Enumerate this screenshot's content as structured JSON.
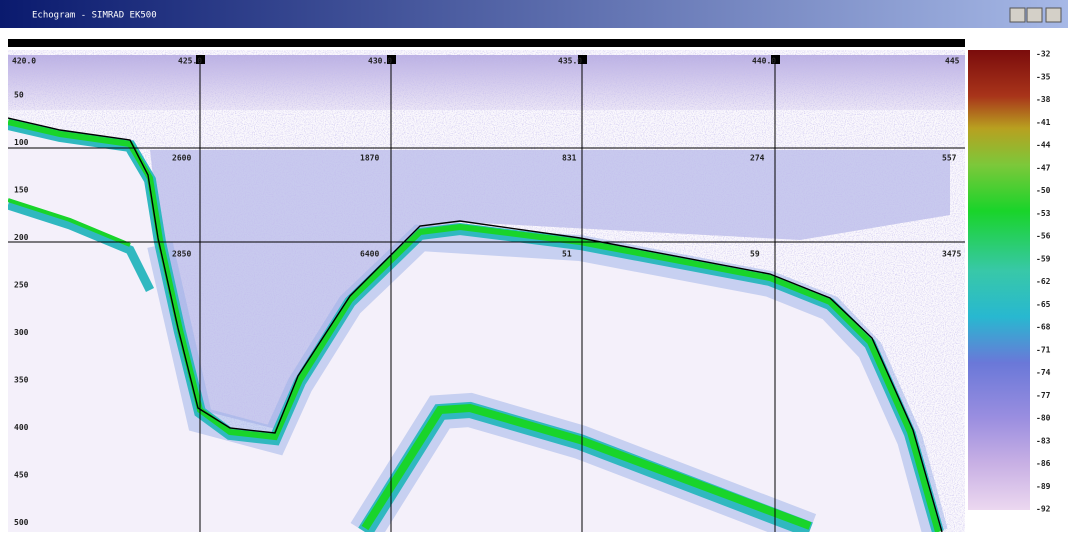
{
  "window": {
    "title": "Echogram - SIMRAD EK500"
  },
  "echogram": {
    "ping_labels": [
      "420.0",
      "425.0",
      "430.0",
      "435.0",
      "440.0",
      "445"
    ],
    "depth_labels": [
      "50",
      "100",
      "150",
      "200",
      "250",
      "300",
      "350",
      "400",
      "450",
      "500"
    ],
    "row1_labels": [
      "2600",
      "1870",
      "831",
      "274",
      "557"
    ],
    "row2_labels": [
      "2850",
      "6400",
      "51",
      "59",
      "3475"
    ]
  },
  "color_scale": {
    "labels": [
      "-32",
      "-35",
      "-38",
      "-41",
      "-44",
      "-47",
      "-50",
      "-53",
      "-56",
      "-59",
      "-62",
      "-65",
      "-68",
      "-71",
      "-74",
      "-77",
      "-80",
      "-83",
      "-86",
      "-89",
      "-92"
    ]
  }
}
